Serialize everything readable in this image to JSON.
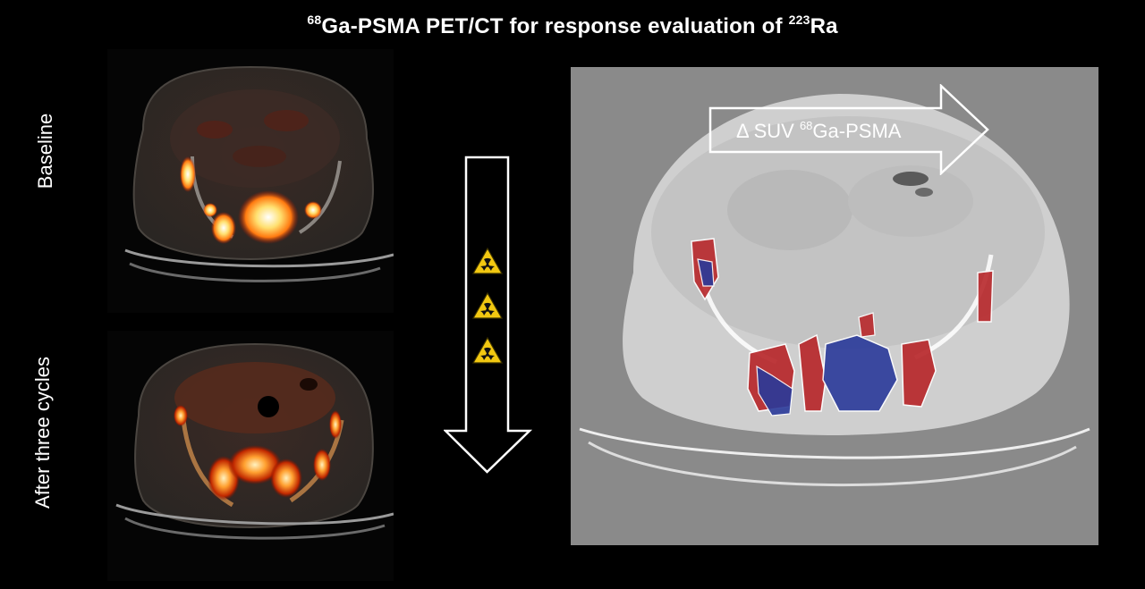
{
  "title": {
    "sup1": "68",
    "part1": "Ga-PSMA PET/CT for response evaluation of ",
    "sup2": "223",
    "part2": "Ra"
  },
  "labels": {
    "baseline": "Baseline",
    "after": "After three cycles"
  },
  "delta": {
    "prefix": "Δ SUV ",
    "sup": "68",
    "suffix": "Ga-PSMA"
  },
  "icons": [
    "radiation-warning-icon",
    "radiation-warning-icon",
    "radiation-warning-icon"
  ],
  "colors": {
    "background": "#000000",
    "ct_panel": "#8a8a8a",
    "increase": "#b8282c",
    "decrease": "#2a3a9a",
    "warning": "#f2c811"
  }
}
